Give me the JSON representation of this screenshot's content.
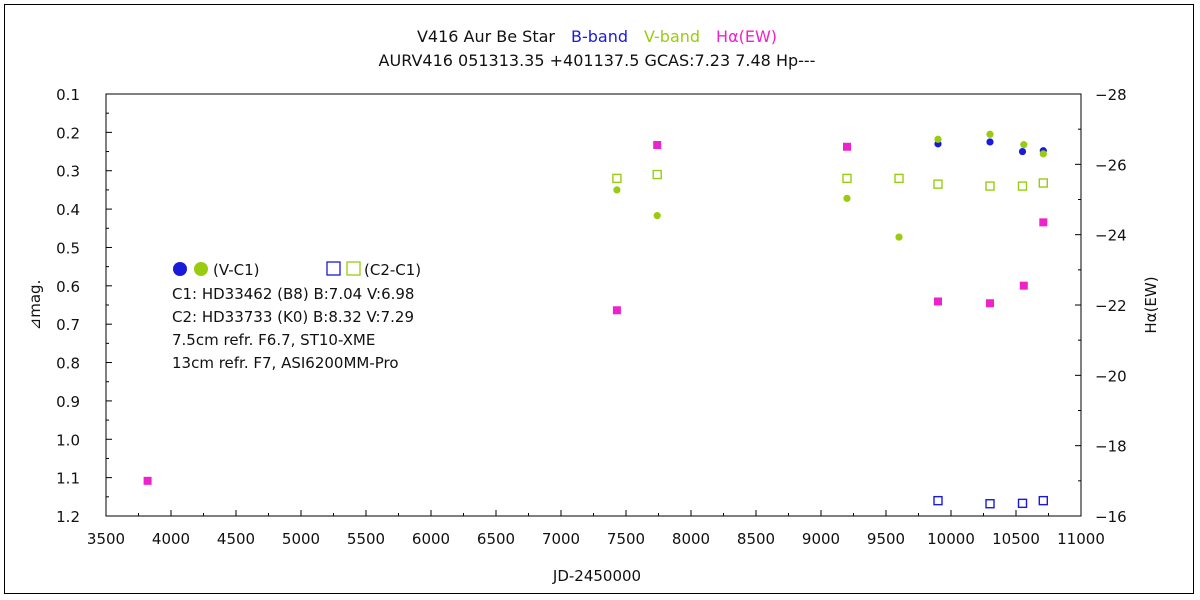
{
  "chart_data": {
    "type": "scatter",
    "title_parts": [
      {
        "text": "V416 Aur   Be Star",
        "color": "#111111"
      },
      {
        "text": "B-band",
        "color": "#1a1adc"
      },
      {
        "text": "V-band",
        "color": "#99cc11"
      },
      {
        "text": "Hα(EW)",
        "color": "#ee22cc"
      }
    ],
    "subtitle": "AURV416 051313.35 +401137.5 GCAS:7.23 7.48 Hp---",
    "xlabel": "JD-2450000",
    "ylabel": "⊿mag.",
    "y2label": "Hα(EW)",
    "xlim": [
      3500,
      11000
    ],
    "ylim": [
      0.1,
      1.2
    ],
    "y2lim": [
      -28,
      -16
    ],
    "x_ticks": [
      "3500",
      "4000",
      "4500",
      "5000",
      "5500",
      "6000",
      "6500",
      "7000",
      "7500",
      "8000",
      "8500",
      "9000",
      "9500",
      "10000",
      "10500",
      "11000"
    ],
    "y_ticks": [
      "0.1",
      "0.2",
      "0.3",
      "0.4",
      "0.5",
      "0.6",
      "0.7",
      "0.8",
      "0.9",
      "1.0",
      "1.1",
      "1.2"
    ],
    "y2_ticks": [
      "-28",
      "-26",
      "-24",
      "-22",
      "-20",
      "-18",
      "-16"
    ],
    "colors": {
      "b": "#1a1adc",
      "v": "#99cc11",
      "h": "#ee22cc",
      "axis": "#000000"
    },
    "series": [
      {
        "key": "b_vc1",
        "marker": "filled-circle",
        "color": "#1a1adc",
        "axis": "left",
        "x": [
          9900,
          10300,
          10550,
          10710
        ],
        "y": [
          0.23,
          0.225,
          0.25,
          0.248
        ]
      },
      {
        "key": "v_vc1",
        "marker": "filled-circle",
        "color": "#99cc11",
        "axis": "left",
        "x": [
          7430,
          7740,
          9200,
          9600,
          9900,
          10300,
          10560,
          10710
        ],
        "y": [
          0.35,
          0.417,
          0.372,
          0.473,
          0.218,
          0.205,
          0.232,
          0.256
        ]
      },
      {
        "key": "b_c2c1",
        "marker": "open-square",
        "color": "#1a1adc",
        "axis": "left",
        "x": [
          9900,
          10300,
          10550,
          10710
        ],
        "y": [
          1.16,
          1.168,
          1.167,
          1.16
        ]
      },
      {
        "key": "v_c2c1",
        "marker": "open-square",
        "color": "#99cc11",
        "axis": "left",
        "x": [
          7430,
          7740,
          9200,
          9600,
          9900,
          10300,
          10550,
          10710
        ],
        "y": [
          0.32,
          0.31,
          0.32,
          0.32,
          0.335,
          0.34,
          0.34,
          0.332
        ]
      },
      {
        "key": "halpha",
        "marker": "filled-square",
        "color": "#ee22cc",
        "axis": "right",
        "x": [
          3820,
          7430,
          7740,
          9200,
          9900,
          10300,
          10560,
          10710
        ],
        "y": [
          -17.0,
          -21.85,
          -26.55,
          -26.5,
          -22.1,
          -22.05,
          -22.55,
          -24.35
        ]
      }
    ],
    "legend": {
      "filled_label": "(V-C1)",
      "open_label": "(C2-C1)",
      "lines": [
        "C1: HD33462 (B8)  B:7.04 V:6.98",
        "C2: HD33733 (K0)  B:8.32 V:7.29",
        "7.5cm refr. F6.7,    ST10-XME",
        "13cm refr. F7,    ASI6200MM-Pro"
      ]
    }
  }
}
